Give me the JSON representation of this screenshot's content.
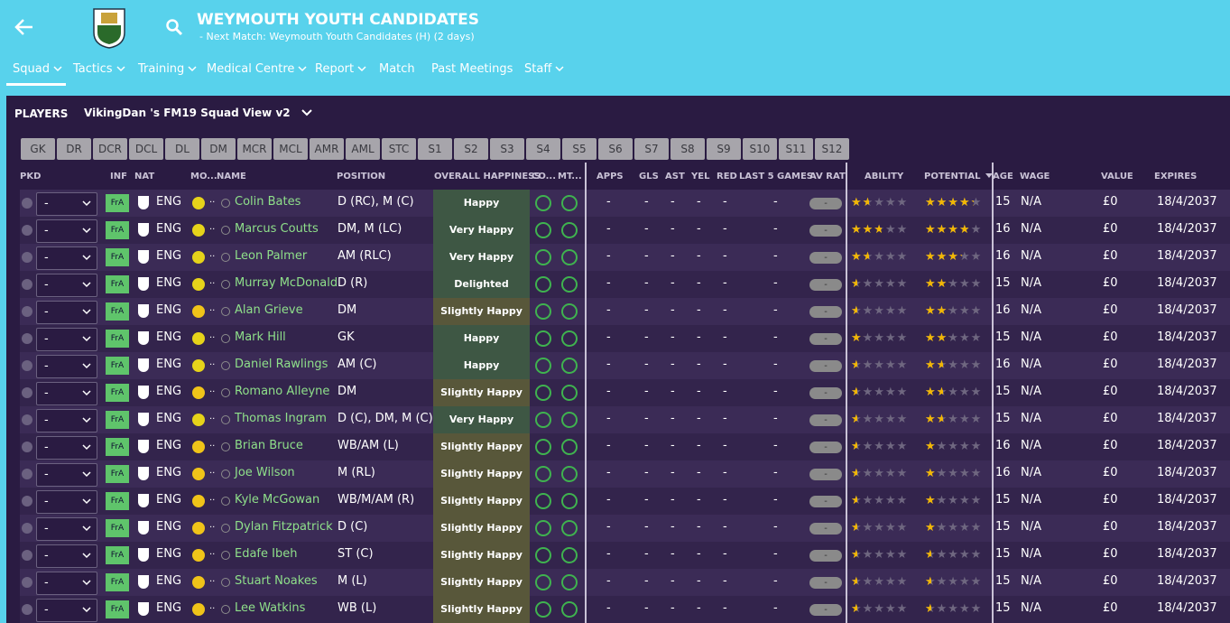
{
  "header": {
    "title": "WEYMOUTH YOUTH CANDIDATES",
    "subtitle": "- Next Match: Weymouth Youth Candidates (H) (2 days)"
  },
  "nav": [
    {
      "label": "Squad",
      "menu": true
    },
    {
      "label": "Tactics",
      "menu": true
    },
    {
      "label": "Training",
      "menu": true
    },
    {
      "label": "Medical Centre",
      "menu": true
    },
    {
      "label": "Report",
      "menu": true
    },
    {
      "label": "Match",
      "menu": false
    },
    {
      "label": "Past Meetings",
      "menu": false
    },
    {
      "label": "Staff",
      "menu": true
    }
  ],
  "panel": {
    "label": "PLAYERS",
    "view": "VikingDan 's FM19 Squad View v2"
  },
  "filters": [
    "GK",
    "DR",
    "DCR",
    "DCL",
    "DL",
    "DM",
    "MCR",
    "MCL",
    "AMR",
    "AML",
    "STC",
    "S1",
    "S2",
    "S3",
    "S4",
    "S5",
    "S6",
    "S7",
    "S8",
    "S9",
    "S10",
    "S11",
    "S12"
  ],
  "columns": [
    "PKD",
    "INF",
    "NAT",
    "MO...",
    "NAME",
    "POSITION",
    "OVERALL HAPPINESS",
    "CO...",
    "MT...",
    "APPS",
    "GLS",
    "AST",
    "YEL",
    "RED",
    "LAST 5 GAMES",
    "AV RAT",
    "ABILITY",
    "POTENTIAL",
    "AGE",
    "WAGE",
    "VALUE",
    "EXPIRES"
  ],
  "rows": [
    {
      "pkd": "-",
      "inf": "FrA",
      "nat": "ENG",
      "mo": "..",
      "name": "Colin Bates",
      "position": "D (RC), M (C)",
      "happiness": "Happy",
      "happiness_color": "#3e5744",
      "apps": "-",
      "gls": "-",
      "ast": "-",
      "yel": "-",
      "red": "-",
      "last5": "-",
      "avrat": "-",
      "ability": 1.5,
      "potential": 4,
      "age": "15",
      "wage": "N/A",
      "value": "£0",
      "expires": "18/4/2037"
    },
    {
      "pkd": "-",
      "inf": "FrA",
      "nat": "ENG",
      "mo": "..",
      "name": "Marcus Coutts",
      "position": "DM, M (LC)",
      "happiness": "Very Happy",
      "happiness_color": "#3e5744",
      "apps": "-",
      "gls": "-",
      "ast": "-",
      "yel": "-",
      "red": "-",
      "last5": "-",
      "avrat": "-",
      "ability": 2.5,
      "potential": 3.5,
      "age": "16",
      "wage": "N/A",
      "value": "£0",
      "expires": "18/4/2037"
    },
    {
      "pkd": "-",
      "inf": "FrA",
      "nat": "ENG",
      "mo": "..",
      "name": "Leon Palmer",
      "position": "AM (RLC)",
      "happiness": "Very Happy",
      "happiness_color": "#3e5744",
      "apps": "-",
      "gls": "-",
      "ast": "-",
      "yel": "-",
      "red": "-",
      "last5": "-",
      "avrat": "-",
      "ability": 1.5,
      "potential": 3,
      "age": "16",
      "wage": "N/A",
      "value": "£0",
      "expires": "18/4/2037"
    },
    {
      "pkd": "-",
      "inf": "FrA",
      "nat": "ENG",
      "mo": "..",
      "name": "Murray McDonald",
      "position": "D (R)",
      "happiness": "Delighted",
      "happiness_color": "#3e5744",
      "apps": "-",
      "gls": "-",
      "ast": "-",
      "yel": "-",
      "red": "-",
      "last5": "-",
      "avrat": "-",
      "ability": 0.5,
      "potential": 2,
      "age": "15",
      "wage": "N/A",
      "value": "£0",
      "expires": "18/4/2037"
    },
    {
      "pkd": "-",
      "inf": "FrA",
      "nat": "ENG",
      "mo": "..",
      "name": "Alan Grieve",
      "position": "DM",
      "happiness": "Slightly Happy",
      "happiness_color": "#58573a",
      "apps": "-",
      "gls": "-",
      "ast": "-",
      "yel": "-",
      "red": "-",
      "last5": "-",
      "avrat": "-",
      "ability": 0.5,
      "potential": 2,
      "age": "16",
      "wage": "N/A",
      "value": "£0",
      "expires": "18/4/2037"
    },
    {
      "pkd": "-",
      "inf": "FrA",
      "nat": "ENG",
      "mo": "..",
      "name": "Mark Hill",
      "position": "GK",
      "happiness": "Happy",
      "happiness_color": "#3e5744",
      "apps": "-",
      "gls": "-",
      "ast": "-",
      "yel": "-",
      "red": "-",
      "last5": "-",
      "avrat": "-",
      "ability": 1,
      "potential": 2,
      "age": "15",
      "wage": "N/A",
      "value": "£0",
      "expires": "18/4/2037"
    },
    {
      "pkd": "-",
      "inf": "FrA",
      "nat": "ENG",
      "mo": "..",
      "name": "Daniel Rawlings",
      "position": "AM (C)",
      "happiness": "Happy",
      "happiness_color": "#3e5744",
      "apps": "-",
      "gls": "-",
      "ast": "-",
      "yel": "-",
      "red": "-",
      "last5": "-",
      "avrat": "-",
      "ability": 0.5,
      "potential": 1.5,
      "age": "16",
      "wage": "N/A",
      "value": "£0",
      "expires": "18/4/2037"
    },
    {
      "pkd": "-",
      "inf": "FrA",
      "nat": "ENG",
      "mo": "..",
      "name": "Romano Alleyne",
      "position": "DM",
      "happiness": "Slightly Happy",
      "happiness_color": "#58573a",
      "apps": "-",
      "gls": "-",
      "ast": "-",
      "yel": "-",
      "red": "-",
      "last5": "-",
      "avrat": "-",
      "ability": 0.5,
      "potential": 1.5,
      "age": "15",
      "wage": "N/A",
      "value": "£0",
      "expires": "18/4/2037"
    },
    {
      "pkd": "-",
      "inf": "FrA",
      "nat": "ENG",
      "mo": "..",
      "name": "Thomas Ingram",
      "position": "D (C), DM, M (C)",
      "happiness": "Very Happy",
      "happiness_color": "#3e5744",
      "apps": "-",
      "gls": "-",
      "ast": "-",
      "yel": "-",
      "red": "-",
      "last5": "-",
      "avrat": "-",
      "ability": 0.5,
      "potential": 1.5,
      "age": "15",
      "wage": "N/A",
      "value": "£0",
      "expires": "18/4/2037"
    },
    {
      "pkd": "-",
      "inf": "FrA",
      "nat": "ENG",
      "mo": "..",
      "name": "Brian Bruce",
      "position": "WB/AM (L)",
      "happiness": "Slightly Happy",
      "happiness_color": "#58573a",
      "apps": "-",
      "gls": "-",
      "ast": "-",
      "yel": "-",
      "red": "-",
      "last5": "-",
      "avrat": "-",
      "ability": 0.5,
      "potential": 1,
      "age": "16",
      "wage": "N/A",
      "value": "£0",
      "expires": "18/4/2037"
    },
    {
      "pkd": "-",
      "inf": "FrA",
      "nat": "ENG",
      "mo": "..",
      "name": "Joe Wilson",
      "position": "M (RL)",
      "happiness": "Slightly Happy",
      "happiness_color": "#58573a",
      "apps": "-",
      "gls": "-",
      "ast": "-",
      "yel": "-",
      "red": "-",
      "last5": "-",
      "avrat": "-",
      "ability": 0.5,
      "potential": 1,
      "age": "16",
      "wage": "N/A",
      "value": "£0",
      "expires": "18/4/2037"
    },
    {
      "pkd": "-",
      "inf": "FrA",
      "nat": "ENG",
      "mo": "..",
      "name": "Kyle McGowan",
      "position": "WB/M/AM (R)",
      "happiness": "Slightly Happy",
      "happiness_color": "#58573a",
      "apps": "-",
      "gls": "-",
      "ast": "-",
      "yel": "-",
      "red": "-",
      "last5": "-",
      "avrat": "-",
      "ability": 0.5,
      "potential": 1,
      "age": "15",
      "wage": "N/A",
      "value": "£0",
      "expires": "18/4/2037"
    },
    {
      "pkd": "-",
      "inf": "FrA",
      "nat": "ENG",
      "mo": "..",
      "name": "Dylan Fitzpatrick",
      "position": "D (C)",
      "happiness": "Slightly Happy",
      "happiness_color": "#58573a",
      "apps": "-",
      "gls": "-",
      "ast": "-",
      "yel": "-",
      "red": "-",
      "last5": "-",
      "avrat": "-",
      "ability": 0.5,
      "potential": 1,
      "age": "15",
      "wage": "N/A",
      "value": "£0",
      "expires": "18/4/2037"
    },
    {
      "pkd": "-",
      "inf": "FrA",
      "nat": "ENG",
      "mo": "..",
      "name": "Edafe Ibeh",
      "position": "ST (C)",
      "happiness": "Slightly Happy",
      "happiness_color": "#58573a",
      "apps": "-",
      "gls": "-",
      "ast": "-",
      "yel": "-",
      "red": "-",
      "last5": "-",
      "avrat": "-",
      "ability": 0.5,
      "potential": 0.5,
      "age": "15",
      "wage": "N/A",
      "value": "£0",
      "expires": "18/4/2037"
    },
    {
      "pkd": "-",
      "inf": "FrA",
      "nat": "ENG",
      "mo": "..",
      "name": "Stuart Noakes",
      "position": "M (L)",
      "happiness": "Slightly Happy",
      "happiness_color": "#58573a",
      "apps": "-",
      "gls": "-",
      "ast": "-",
      "yel": "-",
      "red": "-",
      "last5": "-",
      "avrat": "-",
      "ability": 0.5,
      "potential": 0.5,
      "age": "15",
      "wage": "N/A",
      "value": "£0",
      "expires": "18/4/2037"
    },
    {
      "pkd": "-",
      "inf": "FrA",
      "nat": "ENG",
      "mo": "..",
      "name": "Lee Watkins",
      "position": "WB (L)",
      "happiness": "Slightly Happy",
      "happiness_color": "#58573a",
      "apps": "-",
      "gls": "-",
      "ast": "-",
      "yel": "-",
      "red": "-",
      "last5": "-",
      "avrat": "-",
      "ability": 0.5,
      "potential": 0.5,
      "age": "15",
      "wage": "N/A",
      "value": "£0",
      "expires": "18/4/2037"
    }
  ]
}
